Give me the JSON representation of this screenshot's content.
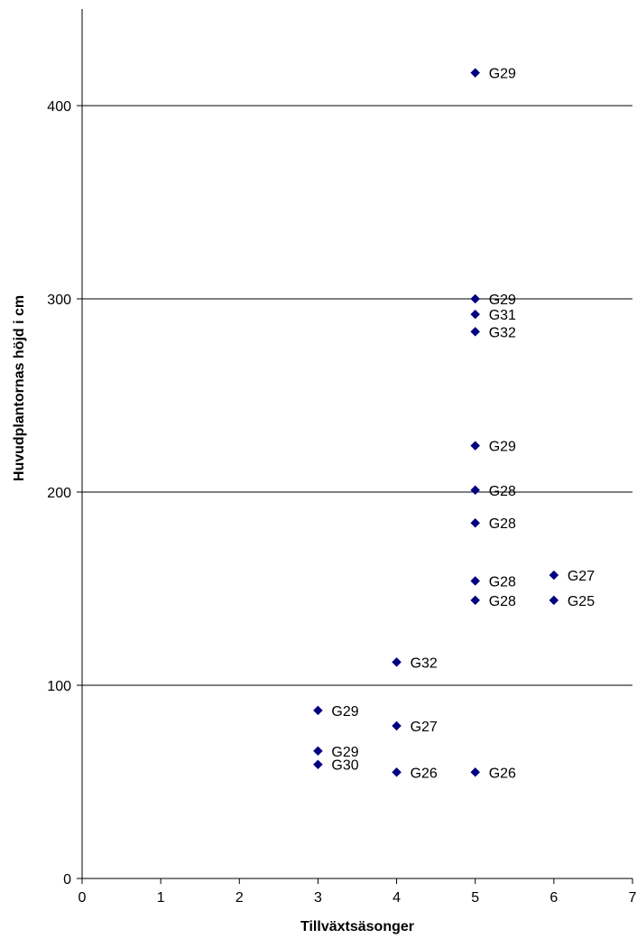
{
  "chart_data": {
    "type": "scatter",
    "title": "",
    "xlabel": "Tillväxtsäsonger",
    "ylabel": "Huvudplantornas höjd i cm",
    "xlim": [
      0,
      7
    ],
    "ylim": [
      0,
      450
    ],
    "x_ticks": [
      "0",
      "1",
      "2",
      "3",
      "4",
      "5",
      "6",
      "7"
    ],
    "y_ticks": [
      "0",
      "100",
      "200",
      "300",
      "400"
    ],
    "grid": "horizontal",
    "legend": "none",
    "marker": "diamond",
    "colors": {
      "marker": "#000080",
      "gridline": "#000000",
      "axis": "#000000",
      "background": "#ffffff"
    },
    "points": [
      {
        "x": 5,
        "y": 417,
        "label": "G29"
      },
      {
        "x": 5,
        "y": 300,
        "label": "G29"
      },
      {
        "x": 5,
        "y": 292,
        "label": "G31"
      },
      {
        "x": 5,
        "y": 283,
        "label": "G32"
      },
      {
        "x": 5,
        "y": 224,
        "label": "G29"
      },
      {
        "x": 5,
        "y": 201,
        "label": "G28"
      },
      {
        "x": 5,
        "y": 184,
        "label": "G28"
      },
      {
        "x": 5,
        "y": 154,
        "label": "G28"
      },
      {
        "x": 5,
        "y": 144,
        "label": "G28"
      },
      {
        "x": 5,
        "y": 55,
        "label": "G26"
      },
      {
        "x": 6,
        "y": 157,
        "label": "G27"
      },
      {
        "x": 6,
        "y": 144,
        "label": "G25"
      },
      {
        "x": 4,
        "y": 112,
        "label": "G32"
      },
      {
        "x": 4,
        "y": 79,
        "label": "G27"
      },
      {
        "x": 4,
        "y": 55,
        "label": "G26"
      },
      {
        "x": 3,
        "y": 87,
        "label": "G29"
      },
      {
        "x": 3,
        "y": 66,
        "label": "G29"
      },
      {
        "x": 3,
        "y": 59,
        "label": "G30"
      }
    ]
  }
}
